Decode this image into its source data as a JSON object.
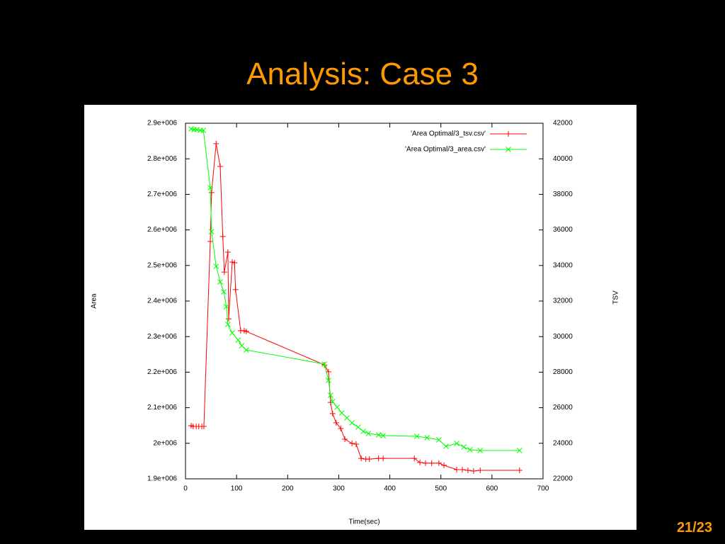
{
  "title": "Analysis: Case 3",
  "slide_number": "21/23",
  "chart_data": {
    "type": "line",
    "xlabel": "Time(sec)",
    "ylabel": "Area",
    "y2label": "TSV",
    "xlim": [
      0,
      700
    ],
    "xticks": [
      0,
      100,
      200,
      300,
      400,
      500,
      600,
      700
    ],
    "ylim": [
      1900000,
      2900000
    ],
    "yticks": [
      {
        "value": 1900000,
        "label": "1.9e+006"
      },
      {
        "value": 2000000,
        "label": "2e+006"
      },
      {
        "value": 2100000,
        "label": "2.1e+006"
      },
      {
        "value": 2200000,
        "label": "2.2e+006"
      },
      {
        "value": 2300000,
        "label": "2.3e+006"
      },
      {
        "value": 2400000,
        "label": "2.4e+006"
      },
      {
        "value": 2500000,
        "label": "2.5e+006"
      },
      {
        "value": 2600000,
        "label": "2.6e+006"
      },
      {
        "value": 2700000,
        "label": "2.7e+006"
      },
      {
        "value": 2800000,
        "label": "2.8e+006"
      },
      {
        "value": 2900000,
        "label": "2.9e+006"
      }
    ],
    "y2lim": [
      22000,
      42000
    ],
    "y2ticks": [
      22000,
      24000,
      26000,
      28000,
      30000,
      32000,
      34000,
      36000,
      38000,
      40000,
      42000
    ],
    "legend": "top-right",
    "series": [
      {
        "name": "'Area Optimal/3_tsv.csv'",
        "color": "#ff0000",
        "marker": "plus",
        "axis": "y2",
        "x": [
          11,
          15,
          21,
          26,
          32,
          36,
          48.5,
          51,
          60,
          68,
          73,
          76,
          83,
          84.5,
          91.5,
          96,
          98,
          108,
          115,
          119,
          272,
          280,
          284,
          288,
          295,
          304,
          312,
          326,
          334,
          344,
          353,
          360,
          378,
          387,
          448,
          459,
          470,
          482,
          496,
          506,
          531,
          542,
          553,
          564,
          577,
          654
        ],
        "values": [
          24990,
          24950,
          24950,
          24950,
          24950,
          24950,
          35350,
          38100,
          40850,
          39570,
          35630,
          33630,
          34750,
          31000,
          34190,
          34150,
          32640,
          30330,
          30330,
          30290,
          28410,
          28020,
          26300,
          25670,
          25150,
          24830,
          24230,
          23990,
          23950,
          23150,
          23110,
          23110,
          23150,
          23150,
          23150,
          22920,
          22880,
          22880,
          22880,
          22760,
          22520,
          22520,
          22480,
          22440,
          22480,
          22480
        ]
      },
      {
        "name": "'Area Optimal/3_area.csv'",
        "color": "#00ff00",
        "marker": "cross",
        "axis": "y",
        "x": [
          11,
          17,
          22,
          29,
          35,
          48.5,
          51,
          60,
          68,
          75,
          80,
          83,
          91.5,
          103,
          110,
          119,
          272,
          280,
          284,
          288,
          297,
          306,
          316,
          326,
          338,
          348,
          358,
          378,
          387,
          453,
          473,
          496,
          510,
          531,
          545,
          557,
          577,
          654
        ],
        "values": [
          2884000,
          2882000,
          2882000,
          2880000,
          2880000,
          2718700,
          2595200,
          2497600,
          2453800,
          2425900,
          2384100,
          2334300,
          2310400,
          2290400,
          2274500,
          2262500,
          2222700,
          2176900,
          2135100,
          2117100,
          2101200,
          2085300,
          2071300,
          2057400,
          2045400,
          2033500,
          2027500,
          2023500,
          2021500,
          2019500,
          2015500,
          2009600,
          1991600,
          1999600,
          1989600,
          1981700,
          1979700,
          1979700
        ]
      }
    ]
  }
}
